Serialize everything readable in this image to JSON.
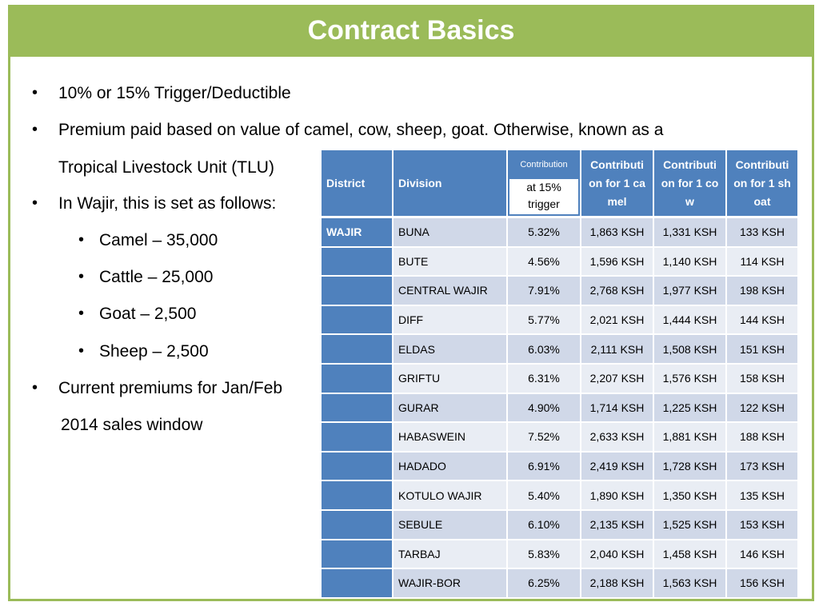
{
  "header": {
    "title": "Contract Basics"
  },
  "bullets": [
    {
      "level": 1,
      "text": "10% or 15% Trigger/Deductible"
    },
    {
      "level": 1,
      "text": "Premium paid based on value of camel, cow, sheep, goat.  Otherwise, known as a"
    },
    {
      "level": 0,
      "text": "Tropical Livestock Unit (TLU)"
    },
    {
      "level": 1,
      "text": "In Wajir, this is set as follows:"
    },
    {
      "level": 2,
      "text": "Camel – 35,000"
    },
    {
      "level": 2,
      "text": "Cattle – 25,000"
    },
    {
      "level": 2,
      "text": "Goat – 2,500"
    },
    {
      "level": 2,
      "text": "Sheep – 2,500"
    },
    {
      "level": 1,
      "text": "Current premiums for Jan/Feb"
    },
    {
      "level": 0,
      "text": "2014 sales window"
    }
  ],
  "table": {
    "headers": [
      "District",
      "Division",
      "Contribution",
      "Contribution for 1 camel",
      "Contribution for 1 cow",
      "Contribution for 1 shoat"
    ],
    "subheader": "at 15% trigger",
    "rows": [
      [
        "WAJIR",
        "BUNA",
        "5.32%",
        "1,863 KSH",
        "1,331 KSH",
        "133 KSH"
      ],
      [
        null,
        "BUTE",
        "4.56%",
        "1,596 KSH",
        "1,140 KSH",
        "114 KSH"
      ],
      [
        null,
        "CENTRAL WAJIR",
        "7.91%",
        "2,768 KSH",
        "1,977 KSH",
        "198 KSH"
      ],
      [
        null,
        "DIFF",
        "5.77%",
        "2,021 KSH",
        "1,444 KSH",
        "144 KSH"
      ],
      [
        null,
        "ELDAS",
        "6.03%",
        "2,111 KSH",
        "1,508 KSH",
        "151 KSH"
      ],
      [
        null,
        "GRIFTU",
        "6.31%",
        "2,207 KSH",
        "1,576 KSH",
        "158 KSH"
      ],
      [
        null,
        "GURAR",
        "4.90%",
        "1,714 KSH",
        "1,225 KSH",
        "122 KSH"
      ],
      [
        null,
        "HABASWEIN",
        "7.52%",
        "2,633 KSH",
        "1,881 KSH",
        "188 KSH"
      ],
      [
        null,
        "HADADO",
        "6.91%",
        "2,419 KSH",
        "1,728 KSH",
        "173 KSH"
      ],
      [
        null,
        "KOTULO WAJIR",
        "5.40%",
        "1,890 KSH",
        "1,350 KSH",
        "135 KSH"
      ],
      [
        null,
        "SEBULE",
        "6.10%",
        "2,135 KSH",
        "1,525 KSH",
        "153 KSH"
      ],
      [
        null,
        "TARBAJ",
        "5.83%",
        "2,040 KSH",
        "1,458 KSH",
        "146 KSH"
      ],
      [
        null,
        "WAJIR-BOR",
        "6.25%",
        "2,188 KSH",
        "1,563 KSH",
        "156 KSH"
      ]
    ]
  }
}
